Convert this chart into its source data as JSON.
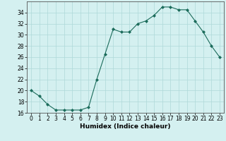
{
  "x": [
    0,
    1,
    2,
    3,
    4,
    5,
    6,
    7,
    8,
    9,
    10,
    11,
    12,
    13,
    14,
    15,
    16,
    17,
    18,
    19,
    20,
    21,
    22,
    23
  ],
  "y": [
    20,
    19,
    17.5,
    16.5,
    16.5,
    16.5,
    16.5,
    17,
    22,
    26.5,
    31,
    30.5,
    30.5,
    32,
    32.5,
    33.5,
    35,
    35,
    34.5,
    34.5,
    32.5,
    30.5,
    28,
    26
  ],
  "xlabel": "Humidex (Indice chaleur)",
  "ylim": [
    16,
    36
  ],
  "xlim": [
    -0.5,
    23.5
  ],
  "yticks": [
    16,
    18,
    20,
    22,
    24,
    26,
    28,
    30,
    32,
    34
  ],
  "xticks": [
    0,
    1,
    2,
    3,
    4,
    5,
    6,
    7,
    8,
    9,
    10,
    11,
    12,
    13,
    14,
    15,
    16,
    17,
    18,
    19,
    20,
    21,
    22,
    23
  ],
  "line_color": "#1a6b5a",
  "marker": "D",
  "marker_size": 2.0,
  "bg_color": "#d4f0f0",
  "grid_color": "#aed8d8",
  "label_fontsize": 6.5,
  "tick_fontsize": 5.5
}
